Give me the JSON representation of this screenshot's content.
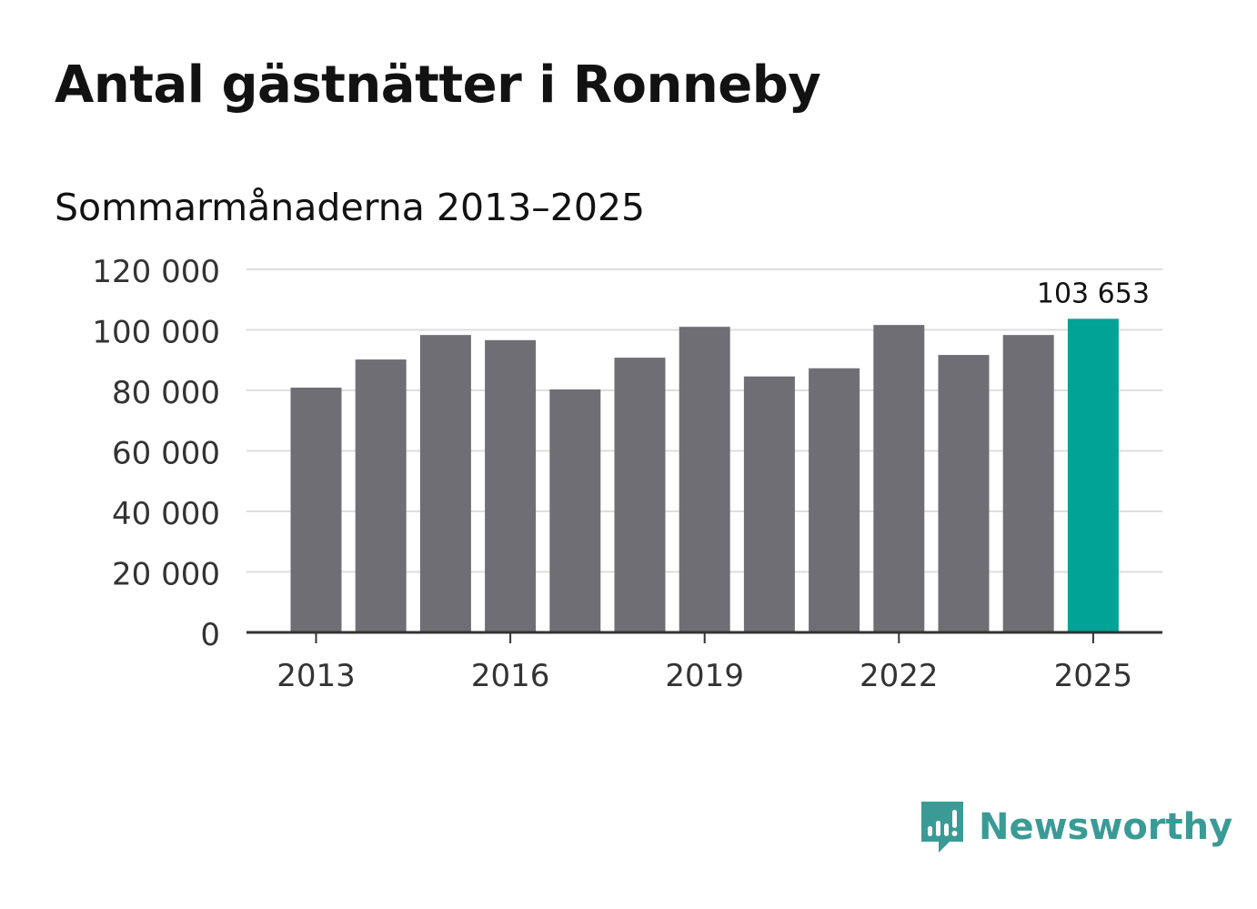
{
  "title": "Antal gästnätter i Ronneby",
  "subtitle": "Sommarmånaderna 2013–2025",
  "brand": {
    "name": "Newsworthy",
    "icon": "newsworthy-logo-icon",
    "color": "#3a9b96"
  },
  "chart_data": {
    "type": "bar",
    "categories": [
      "2013",
      "2014",
      "2015",
      "2016",
      "2017",
      "2018",
      "2019",
      "2020",
      "2021",
      "2022",
      "2023",
      "2024",
      "2025"
    ],
    "values": [
      80900,
      90200,
      98300,
      96600,
      80300,
      90800,
      101000,
      84600,
      87300,
      101600,
      91700,
      98300,
      103653
    ],
    "highlight": {
      "category": "2025",
      "label": "103 653"
    },
    "colors": {
      "default": "#706e75",
      "highlight": "#00a396"
    },
    "x_tick_labels": [
      "2013",
      "2016",
      "2019",
      "2022",
      "2025"
    ],
    "y_tick_labels": [
      "0",
      "20 000",
      "40 000",
      "60 000",
      "80 000",
      "100 000",
      "120 000"
    ],
    "y_ticks": [
      0,
      20000,
      40000,
      60000,
      80000,
      100000,
      120000
    ],
    "ylim": [
      0,
      120000
    ],
    "grid": true,
    "legend": "none"
  }
}
